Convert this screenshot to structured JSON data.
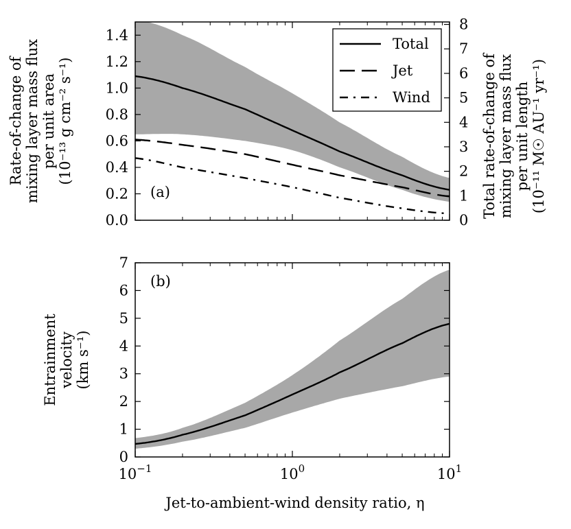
{
  "chart_data": [
    {
      "id": "a",
      "type": "line",
      "panel_label": "(a)",
      "xscale": "log",
      "xlim": [
        0.1,
        10
      ],
      "ylim": [
        0,
        1.5
      ],
      "yticks": [
        "0.0",
        "0.2",
        "0.4",
        "0.6",
        "0.8",
        "1.0",
        "1.2",
        "1.4"
      ],
      "ylabel_lines": [
        "Rate-of-change of",
        "mixing layer mass flux",
        "per unit area",
        "(10⁻¹³ g cm⁻² s⁻¹)"
      ],
      "ylim_right": [
        0,
        8.1
      ],
      "yticks_right": [
        "0",
        "1",
        "2",
        "3",
        "4",
        "5",
        "6",
        "7",
        "8"
      ],
      "ylabel_right_lines": [
        "Total rate-of-change of",
        "mixing layer mass flux",
        "per unit length",
        "(10⁻¹¹ M☉ AU⁻¹ yr⁻¹)"
      ],
      "legend_position": "top-right",
      "x": [
        0.1,
        0.2,
        0.5,
        1,
        2,
        5,
        10
      ],
      "series": [
        {
          "name": "Total",
          "style": "solid",
          "values": [
            1.09,
            1.0,
            0.84,
            0.68,
            0.52,
            0.34,
            0.23
          ]
        },
        {
          "name": "Jet",
          "style": "dashed",
          "values": [
            0.61,
            0.57,
            0.5,
            0.42,
            0.34,
            0.25,
            0.18
          ]
        },
        {
          "name": "Wind",
          "style": "dashdot",
          "values": [
            0.47,
            0.4,
            0.32,
            0.25,
            0.17,
            0.09,
            0.05
          ]
        }
      ],
      "band": {
        "lower": [
          0.65,
          0.65,
          0.6,
          0.53,
          0.4,
          0.23,
          0.14
        ],
        "upper": [
          1.52,
          1.4,
          1.16,
          0.96,
          0.74,
          0.48,
          0.32
        ]
      }
    },
    {
      "id": "b",
      "type": "line",
      "panel_label": "(b)",
      "xscale": "log",
      "xlim": [
        0.1,
        10
      ],
      "ylim": [
        0,
        7
      ],
      "yticks": [
        "0",
        "1",
        "2",
        "3",
        "4",
        "5",
        "6",
        "7"
      ],
      "xticks": [
        {
          "value": 0.1,
          "base": "10",
          "exp": "−1"
        },
        {
          "value": 1,
          "base": "10",
          "exp": "0"
        },
        {
          "value": 10,
          "base": "10",
          "exp": "1"
        }
      ],
      "ylabel_lines": [
        "Entrainment",
        "velocity",
        "(km s⁻¹)"
      ],
      "xlabel": "Jet-to-ambient-wind density ratio, η",
      "x": [
        0.1,
        0.2,
        0.5,
        1,
        2,
        5,
        10
      ],
      "series": [
        {
          "values": [
            0.47,
            0.8,
            1.5,
            2.25,
            3.05,
            4.1,
            4.8
          ]
        }
      ],
      "band": {
        "lower": [
          0.3,
          0.55,
          1.05,
          1.6,
          2.1,
          2.55,
          2.9
        ],
        "upper": [
          0.68,
          1.05,
          1.95,
          2.95,
          4.2,
          5.7,
          6.75
        ]
      }
    }
  ]
}
